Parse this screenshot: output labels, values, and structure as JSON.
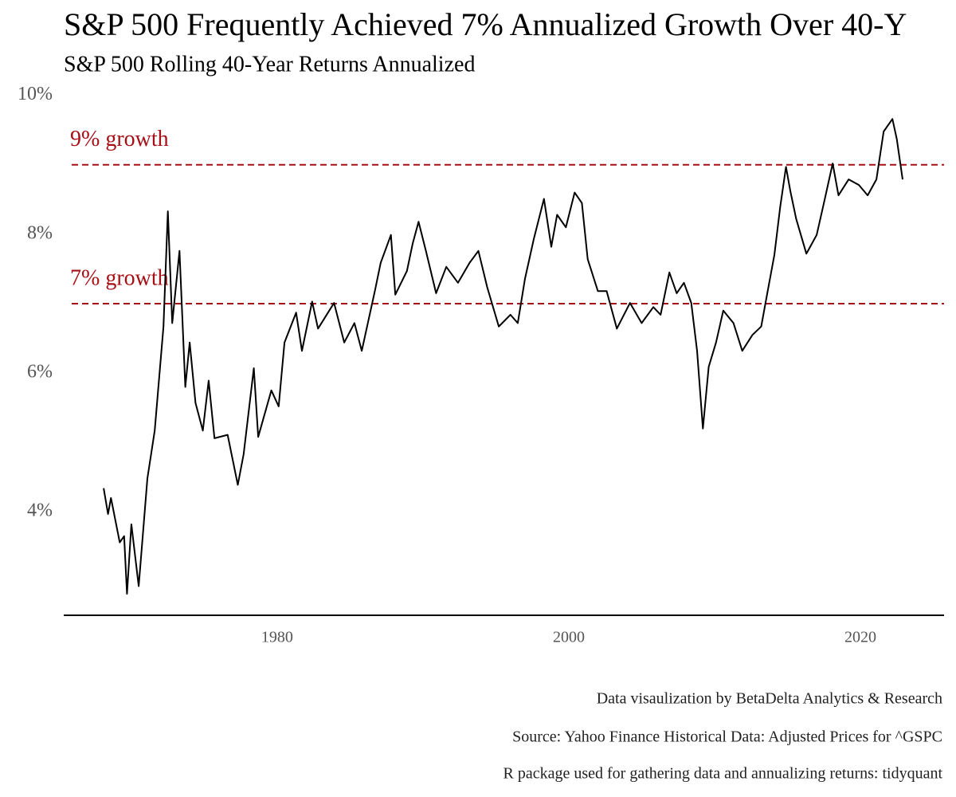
{
  "chart_data": {
    "type": "line",
    "title": "S&P 500 Frequently Achieved 7% Annualized Growth Over 40-Y",
    "subtitle": "S&P 500 Rolling 40-Year Returns Annualized",
    "captions": [
      "Data visaulization by BetaDelta Analytics & Research",
      "Source: Yahoo Finance Historical Data: Adjusted Prices for ^GSPC",
      "R package used for gathering data and annualizing returns: tidyquant"
    ],
    "color": "#000000",
    "x": [
      1968.1,
      1968.4,
      1968.6,
      1969.2,
      1969.5,
      1969.7,
      1970.0,
      1970.5,
      1971.1,
      1971.6,
      1972.2,
      1972.5,
      1972.8,
      1973.3,
      1973.7,
      1974.0,
      1974.4,
      1974.9,
      1975.3,
      1975.7,
      1976.6,
      1977.3,
      1977.7,
      1978.4,
      1978.7,
      1979.6,
      1980.1,
      1980.5,
      1981.3,
      1981.7,
      1982.4,
      1982.8,
      1983.9,
      1984.6,
      1985.3,
      1985.8,
      1986.7,
      1987.1,
      1987.8,
      1988.1,
      1988.9,
      1989.3,
      1989.7,
      1990.2,
      1990.9,
      1991.6,
      1992.4,
      1993.2,
      1993.8,
      1994.4,
      1995.2,
      1996.0,
      1996.5,
      1997.0,
      1997.6,
      1998.3,
      1998.8,
      1999.2,
      1999.8,
      2000.4,
      2000.9,
      2001.3,
      2002.0,
      2002.6,
      2003.3,
      2004.2,
      2005.0,
      2005.8,
      2006.3,
      2006.9,
      2007.4,
      2007.9,
      2008.4,
      2008.8,
      2009.2,
      2009.6,
      2010.1,
      2010.6,
      2011.3,
      2011.9,
      2012.6,
      2013.2,
      2013.6,
      2014.1,
      2014.5,
      2014.9,
      2015.2,
      2015.6,
      2016.3,
      2017.0,
      2017.5,
      2018.1,
      2018.5,
      2019.2,
      2019.9,
      2020.5,
      2021.1,
      2021.6,
      2022.2,
      2022.5,
      2022.9
    ],
    "values": [
      4.34,
      3.97,
      4.2,
      3.56,
      3.65,
      2.82,
      3.82,
      2.93,
      4.48,
      5.17,
      6.67,
      8.33,
      6.72,
      7.76,
      5.8,
      6.44,
      5.57,
      5.17,
      5.89,
      5.06,
      5.11,
      4.39,
      4.83,
      6.07,
      5.08,
      5.75,
      5.52,
      6.44,
      6.87,
      6.32,
      7.03,
      6.64,
      7.01,
      6.44,
      6.72,
      6.32,
      7.18,
      7.59,
      7.99,
      7.13,
      7.47,
      7.87,
      8.18,
      7.76,
      7.15,
      7.53,
      7.3,
      7.59,
      7.76,
      7.24,
      6.67,
      6.84,
      6.72,
      7.36,
      7.93,
      8.51,
      7.82,
      8.28,
      8.1,
      8.6,
      8.45,
      7.64,
      7.18,
      7.18,
      6.64,
      7.01,
      6.72,
      6.95,
      6.84,
      7.45,
      7.15,
      7.3,
      7.01,
      6.32,
      5.2,
      6.09,
      6.44,
      6.9,
      6.72,
      6.32,
      6.55,
      6.67,
      7.13,
      7.7,
      8.39,
      8.97,
      8.62,
      8.22,
      7.72,
      7.99,
      8.45,
      9.02,
      8.56,
      8.79,
      8.71,
      8.56,
      8.79,
      9.48,
      9.66,
      9.37,
      8.79
    ],
    "xlim": [
      1965.36,
      2025.74
    ],
    "ylim": [
      2.51,
      10.1
    ],
    "xticks": [
      1980,
      2000,
      2020
    ],
    "yticks": [
      {
        "value": 4,
        "label": "4%"
      },
      {
        "value": 6,
        "label": "6%"
      },
      {
        "value": 8,
        "label": "8%"
      },
      {
        "value": 10,
        "label": "10%"
      }
    ],
    "reference_lines": [
      {
        "value": 9,
        "label": "9% growth"
      },
      {
        "value": 7,
        "label": "7% growth"
      }
    ],
    "reference_color": "#a50f15"
  }
}
